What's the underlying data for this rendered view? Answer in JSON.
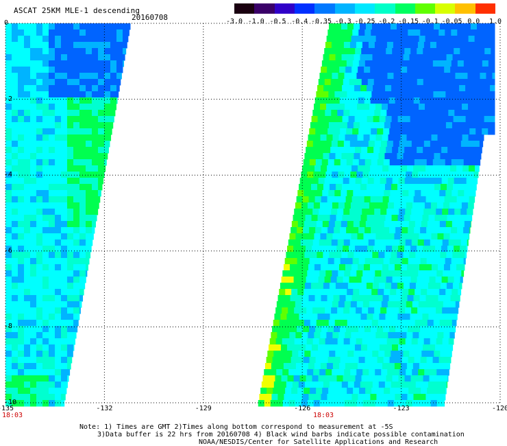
{
  "header": {
    "title": "ASCAT 25KM MLE-1 descending",
    "date": "20160708"
  },
  "colorbar": {
    "labels": [
      "-3.0",
      "-1.0",
      "-0.5",
      "-0.4",
      "-0.35",
      "-0.3",
      "-0.25",
      "-0.2",
      "-0.15",
      "-0.1",
      "-0.05",
      "0.0",
      "1.0"
    ],
    "colors": [
      "#1a0010",
      "#3a0068",
      "#3000c8",
      "#0030ff",
      "#0078ff",
      "#00b4ff",
      "#00e8ff",
      "#00ffc8",
      "#00ff60",
      "#60ff00",
      "#d8ff00",
      "#ffc000",
      "#ff3000"
    ]
  },
  "map": {
    "lon_range": [
      -135,
      -120
    ],
    "lat_range": [
      -10,
      0
    ],
    "x_ticks": [
      "-135",
      "-132",
      "-129",
      "-126",
      "-123",
      "-120"
    ],
    "y_ticks": [
      "0",
      "-2",
      "-4",
      "-6",
      "-8",
      "-10"
    ],
    "swath_times": [
      "18:03",
      "18:03"
    ],
    "legend_colors": {
      "blue": "#0064ff",
      "lightblue": "#00b4ff",
      "cyan": "#00ffff",
      "aqua": "#00ffd0",
      "green": "#00ff50",
      "lime": "#60ff00",
      "yellow": "#f0ff00",
      "orange": "#ffa000"
    }
  },
  "notes": {
    "line1": "Note: 1) Times are GMT 2)Times along bottom correspond to measurement at -5S",
    "line2": "3)Data buffer is 22 hrs from 20160708 4) Black wind barbs indicate possible contamination",
    "line3": "NOAA/NESDIS/Center for Satellite Applications and Research"
  }
}
